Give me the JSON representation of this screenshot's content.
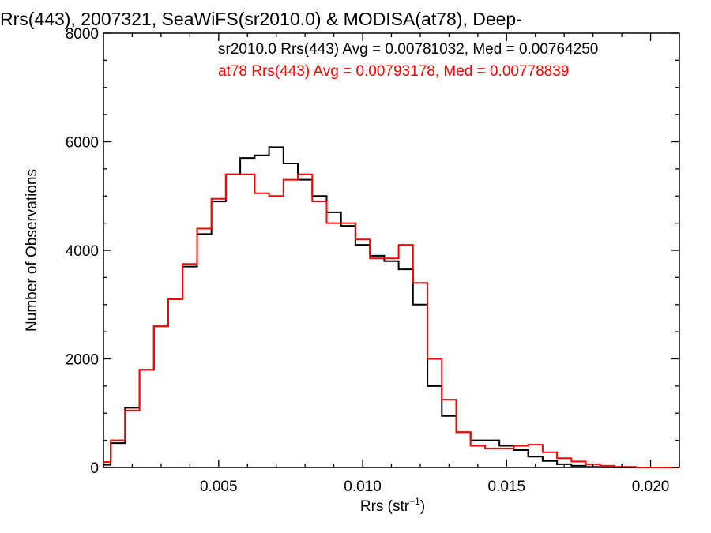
{
  "chart_data": {
    "type": "line",
    "title": "Rrs(443), 2007321, SeaWiFS(sr2010.0) & MODISA(at78), Deep-",
    "xlabel": "Rrs (str",
    "xlabel_sup": "−1",
    "xlabel_close": ")",
    "ylabel": "Number of Observations",
    "xlim": [
      0.001,
      0.021
    ],
    "ylim": [
      0,
      8000
    ],
    "grid": false,
    "legend_position": "top-right",
    "x_ticks": [
      0.005,
      0.01,
      0.015,
      0.02
    ],
    "x_tick_labels": [
      "0.005",
      "0.010",
      "0.015",
      "0.020"
    ],
    "y_ticks": [
      0,
      2000,
      4000,
      6000,
      8000
    ],
    "y_tick_labels": [
      "0",
      "2000",
      "4000",
      "6000",
      "8000"
    ],
    "x": [
      0.001,
      0.0015,
      0.002,
      0.0025,
      0.003,
      0.0035,
      0.004,
      0.0045,
      0.005,
      0.0055,
      0.006,
      0.0065,
      0.007,
      0.0075,
      0.008,
      0.0085,
      0.009,
      0.0095,
      0.01,
      0.0105,
      0.011,
      0.0115,
      0.012,
      0.0125,
      0.013,
      0.0135,
      0.014,
      0.0145,
      0.015,
      0.0155,
      0.016,
      0.0165,
      0.017,
      0.0175,
      0.018,
      0.0185,
      0.019,
      0.02,
      0.021
    ],
    "series": [
      {
        "name": "sr2010.0 Rrs(443) Avg = 0.00781032, Med = 0.00764250",
        "color": "#000000",
        "values": [
          50,
          450,
          1100,
          1800,
          2600,
          3100,
          3700,
          4300,
          4900,
          5400,
          5700,
          5750,
          5900,
          5600,
          5300,
          5000,
          4700,
          4450,
          4100,
          3900,
          3800,
          3650,
          3000,
          1500,
          950,
          650,
          500,
          500,
          400,
          320,
          200,
          120,
          60,
          30,
          10,
          5,
          0,
          0,
          0
        ]
      },
      {
        "name": "at78 Rrs(443) Avg = 0.00793178, Med = 0.00778839",
        "color": "#ff0000",
        "values": [
          100,
          500,
          1050,
          1800,
          2600,
          3100,
          3750,
          4400,
          4950,
          5400,
          5400,
          5050,
          5000,
          5300,
          5400,
          4900,
          4500,
          4500,
          4200,
          3850,
          3850,
          4100,
          3400,
          2000,
          1250,
          650,
          400,
          350,
          350,
          400,
          420,
          280,
          170,
          110,
          60,
          30,
          10,
          0,
          0
        ]
      }
    ]
  }
}
